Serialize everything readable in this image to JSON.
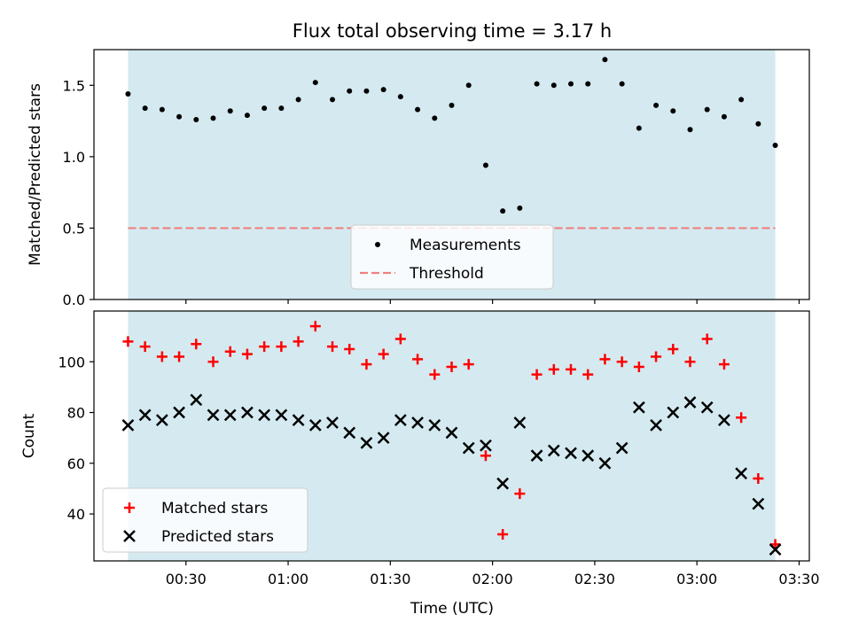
{
  "chart_data": [
    {
      "type": "scatter",
      "title": "Flux total observing time = 3.17 h",
      "ylabel": "Matched/Predicted stars",
      "xlabel": "",
      "ylim": [
        0,
        1.75
      ],
      "yticks": [
        0.0,
        0.5,
        1.0,
        1.5
      ],
      "ytick_labels": [
        "0.0",
        "0.5",
        "1.0",
        "1.5"
      ],
      "shaded_span": [
        "00:13",
        "03:23"
      ],
      "shade_color": "#d4eaf0",
      "legend_placement": "lower-center",
      "threshold": {
        "name": "Threshold",
        "value": 0.5,
        "color": "#f08080",
        "style": "dashed"
      },
      "series": [
        {
          "name": "Measurements",
          "marker": "dot",
          "color": "#000000",
          "x": [
            "00:13",
            "00:18",
            "00:23",
            "00:28",
            "00:33",
            "00:38",
            "00:43",
            "00:48",
            "00:53",
            "00:58",
            "01:03",
            "01:08",
            "01:13",
            "01:18",
            "01:23",
            "01:28",
            "01:33",
            "01:38",
            "01:43",
            "01:48",
            "01:53",
            "01:58",
            "02:03",
            "02:08",
            "02:13",
            "02:18",
            "02:23",
            "02:28",
            "02:33",
            "02:38",
            "02:43",
            "02:48",
            "02:53",
            "02:58",
            "03:03",
            "03:08",
            "03:13",
            "03:18",
            "03:23"
          ],
          "y": [
            1.44,
            1.34,
            1.33,
            1.28,
            1.26,
            1.27,
            1.32,
            1.29,
            1.34,
            1.34,
            1.4,
            1.52,
            1.4,
            1.46,
            1.46,
            1.47,
            1.42,
            1.33,
            1.27,
            1.36,
            1.5,
            0.94,
            0.62,
            0.64,
            1.51,
            1.5,
            1.51,
            1.51,
            1.68,
            1.51,
            1.2,
            1.36,
            1.32,
            1.19,
            1.33,
            1.28,
            1.4,
            1.23,
            1.08
          ]
        }
      ]
    },
    {
      "type": "scatter",
      "title": "",
      "xlabel": "Time (UTC)",
      "ylabel": "Count",
      "ylim": [
        21.5,
        120
      ],
      "yticks": [
        40,
        60,
        80,
        100
      ],
      "ytick_labels": [
        "40",
        "60",
        "80",
        "100"
      ],
      "xlim": [
        "00:03",
        "03:33"
      ],
      "xticks": [
        "00:30",
        "01:00",
        "01:30",
        "02:00",
        "02:30",
        "03:00",
        "03:30"
      ],
      "xtick_labels": [
        "00:30",
        "01:00",
        "01:30",
        "02:00",
        "02:30",
        "03:00",
        "03:30"
      ],
      "shaded_span": [
        "00:13",
        "03:23"
      ],
      "shade_color": "#d4eaf0",
      "legend_placement": "lower-left",
      "series": [
        {
          "name": "Matched stars",
          "marker": "plus",
          "color": "#ff0000",
          "x": [
            "00:13",
            "00:18",
            "00:23",
            "00:28",
            "00:33",
            "00:38",
            "00:43",
            "00:48",
            "00:53",
            "00:58",
            "01:03",
            "01:08",
            "01:13",
            "01:18",
            "01:23",
            "01:28",
            "01:33",
            "01:38",
            "01:43",
            "01:48",
            "01:53",
            "01:58",
            "02:03",
            "02:08",
            "02:13",
            "02:18",
            "02:23",
            "02:28",
            "02:33",
            "02:38",
            "02:43",
            "02:48",
            "02:53",
            "02:58",
            "03:03",
            "03:08",
            "03:13",
            "03:18",
            "03:23"
          ],
          "y": [
            108,
            106,
            102,
            102,
            107,
            100,
            104,
            103,
            106,
            106,
            108,
            114,
            106,
            105,
            99,
            103,
            109,
            101,
            95,
            98,
            99,
            63,
            32,
            48,
            95,
            97,
            97,
            95,
            101,
            100,
            98,
            102,
            105,
            100,
            109,
            99,
            78,
            54,
            28
          ]
        },
        {
          "name": "Predicted stars",
          "marker": "x",
          "color": "#000000",
          "x": [
            "00:13",
            "00:18",
            "00:23",
            "00:28",
            "00:33",
            "00:38",
            "00:43",
            "00:48",
            "00:53",
            "00:58",
            "01:03",
            "01:08",
            "01:13",
            "01:18",
            "01:23",
            "01:28",
            "01:33",
            "01:38",
            "01:43",
            "01:48",
            "01:53",
            "01:58",
            "02:03",
            "02:08",
            "02:13",
            "02:18",
            "02:23",
            "02:28",
            "02:33",
            "02:38",
            "02:43",
            "02:48",
            "02:53",
            "02:58",
            "03:03",
            "03:08",
            "03:13",
            "03:18",
            "03:23"
          ],
          "y": [
            75,
            79,
            77,
            80,
            85,
            79,
            79,
            80,
            79,
            79,
            77,
            75,
            76,
            72,
            68,
            70,
            77,
            76,
            75,
            72,
            66,
            67,
            52,
            76,
            63,
            65,
            64,
            63,
            60,
            66,
            82,
            75,
            80,
            84,
            82,
            77,
            56,
            44,
            26
          ]
        }
      ]
    }
  ]
}
